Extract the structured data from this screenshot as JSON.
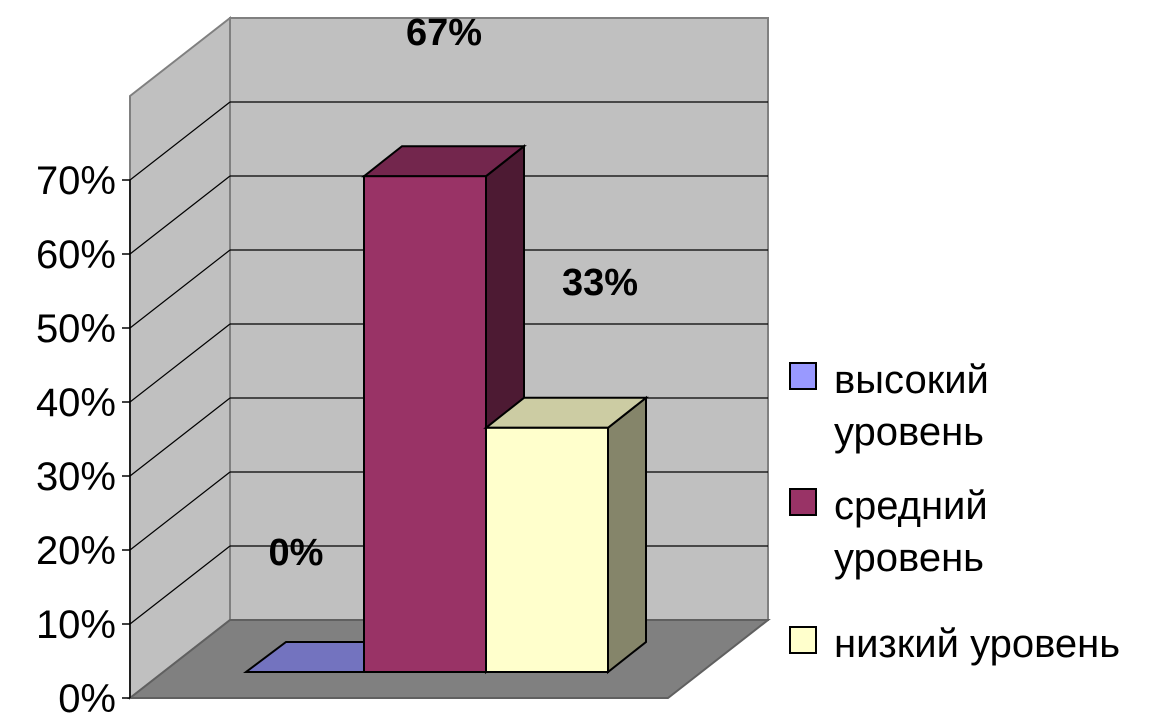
{
  "chart_data": {
    "type": "bar",
    "title": "",
    "xlabel": "",
    "ylabel": "",
    "ylim": [
      0,
      70
    ],
    "y_ticks": [
      "0%",
      "10%",
      "20%",
      "30%",
      "40%",
      "50%",
      "60%",
      "70%"
    ],
    "grid": "horizontal gridlines on back wall",
    "style": "3d clustered columns",
    "legend_position": "right",
    "series": [
      {
        "name": "высокий уровень",
        "value": 0,
        "label": "0%",
        "color": "#9999ff"
      },
      {
        "name": "средний уровень",
        "value": 67,
        "label": "67%",
        "color": "#993366"
      },
      {
        "name": "низкий уровень",
        "value": 33,
        "label": "33%",
        "color": "#ffffcc"
      }
    ]
  },
  "legend": {
    "items": [
      {
        "lines": [
          "высокий",
          "уровень"
        ]
      },
      {
        "lines": [
          "средний",
          "уровень"
        ]
      },
      {
        "lines": [
          "низкий уровень"
        ]
      }
    ]
  }
}
